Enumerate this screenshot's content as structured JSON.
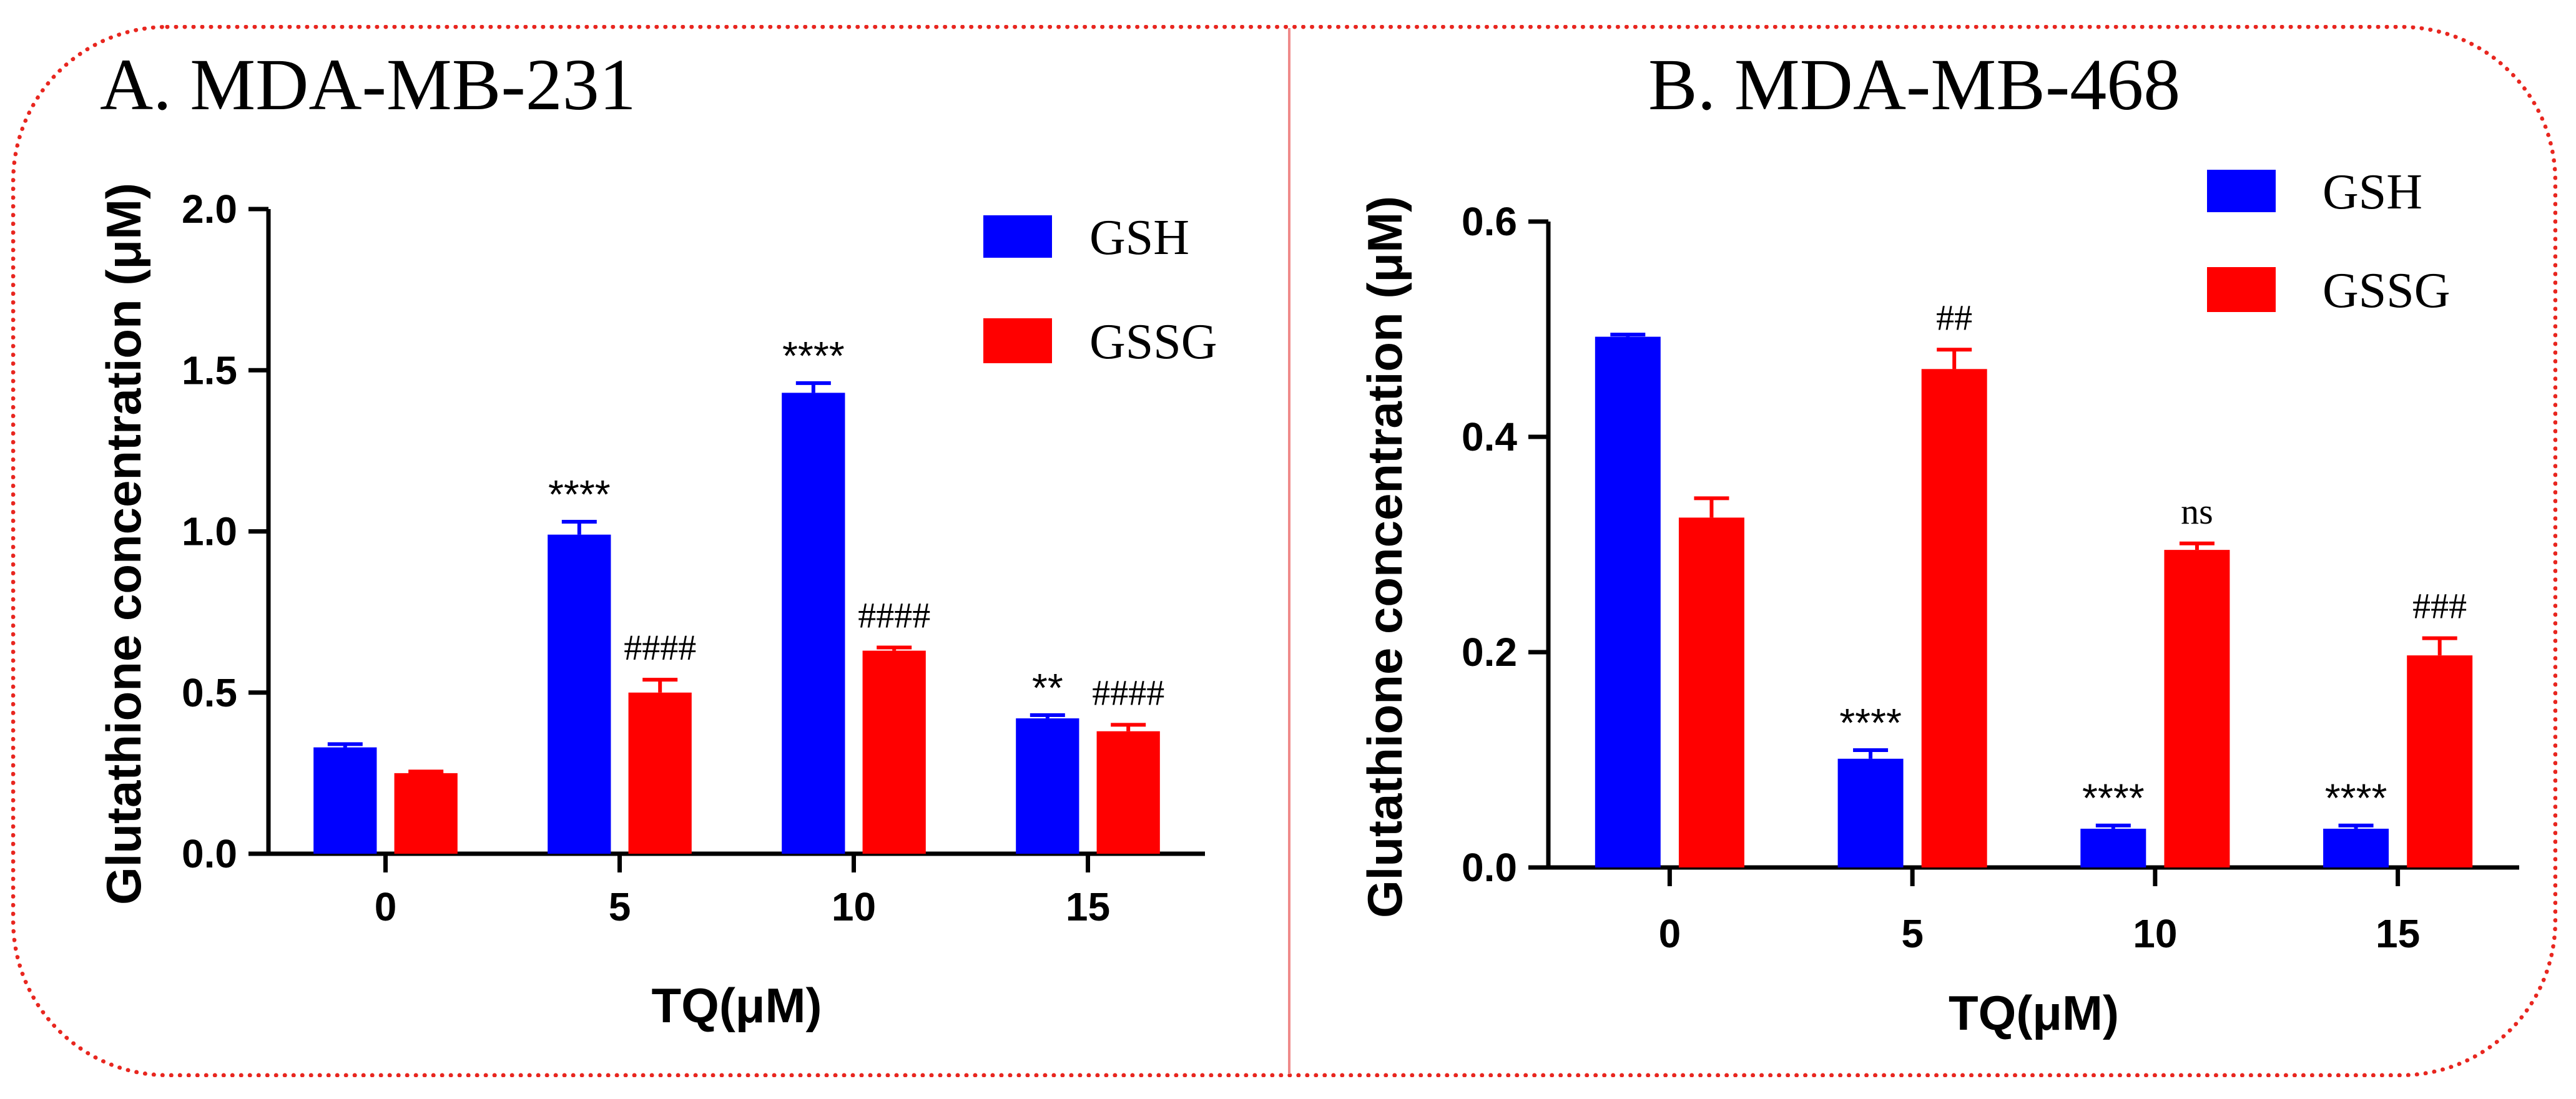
{
  "chart_data": [
    {
      "type": "bar",
      "title": "A. MDA-MB-231",
      "xlabel": "TQ(μM)",
      "ylabel": "Glutathione concentration (μM)",
      "ylim": [
        0,
        2.0
      ],
      "yticks": [
        "0.0",
        "0.5",
        "1.0",
        "1.5",
        "2.0"
      ],
      "categories": [
        "0",
        "5",
        "10",
        "15"
      ],
      "series": [
        {
          "name": "GSH",
          "color": "#0000ff",
          "values": [
            0.33,
            0.99,
            1.43,
            0.42
          ],
          "errors": [
            0.01,
            0.04,
            0.03,
            0.01
          ]
        },
        {
          "name": "GSSG",
          "color": "#ff0000",
          "values": [
            0.25,
            0.5,
            0.63,
            0.38
          ],
          "errors": [
            0.005,
            0.04,
            0.01,
            0.02
          ]
        }
      ],
      "annotations": [
        {
          "series": "GSH",
          "category": "5",
          "text": "****"
        },
        {
          "series": "GSSG",
          "category": "5",
          "text": "####"
        },
        {
          "series": "GSH",
          "category": "10",
          "text": "****"
        },
        {
          "series": "GSSG",
          "category": "10",
          "text": "####"
        },
        {
          "series": "GSH",
          "category": "15",
          "text": "**"
        },
        {
          "series": "GSSG",
          "category": "15",
          "text": "####"
        }
      ]
    },
    {
      "type": "bar",
      "title": "B. MDA-MB-468",
      "xlabel": "TQ(μM)",
      "ylabel": "Glutathione concentration (μM)",
      "ylim": [
        0,
        0.6
      ],
      "yticks": [
        "0.0",
        "0.2",
        "0.4",
        "0.6"
      ],
      "categories": [
        "0",
        "5",
        "10",
        "15"
      ],
      "series": [
        {
          "name": "GSH",
          "color": "#0000ff",
          "values": [
            0.493,
            0.101,
            0.036,
            0.036
          ],
          "errors": [
            0.002,
            0.008,
            0.003,
            0.003
          ]
        },
        {
          "name": "GSSG",
          "color": "#ff0000",
          "values": [
            0.325,
            0.463,
            0.295,
            0.197
          ],
          "errors": [
            0.018,
            0.018,
            0.006,
            0.016
          ]
        }
      ],
      "annotations": [
        {
          "series": "GSSG",
          "category": "5",
          "text": "##"
        },
        {
          "series": "GSH",
          "category": "5",
          "text": "****"
        },
        {
          "series": "GSSG",
          "category": "10",
          "text": "ns"
        },
        {
          "series": "GSH",
          "category": "10",
          "text": "****"
        },
        {
          "series": "GSSG",
          "category": "15",
          "text": "###"
        },
        {
          "series": "GSH",
          "category": "15",
          "text": "****"
        }
      ]
    }
  ]
}
